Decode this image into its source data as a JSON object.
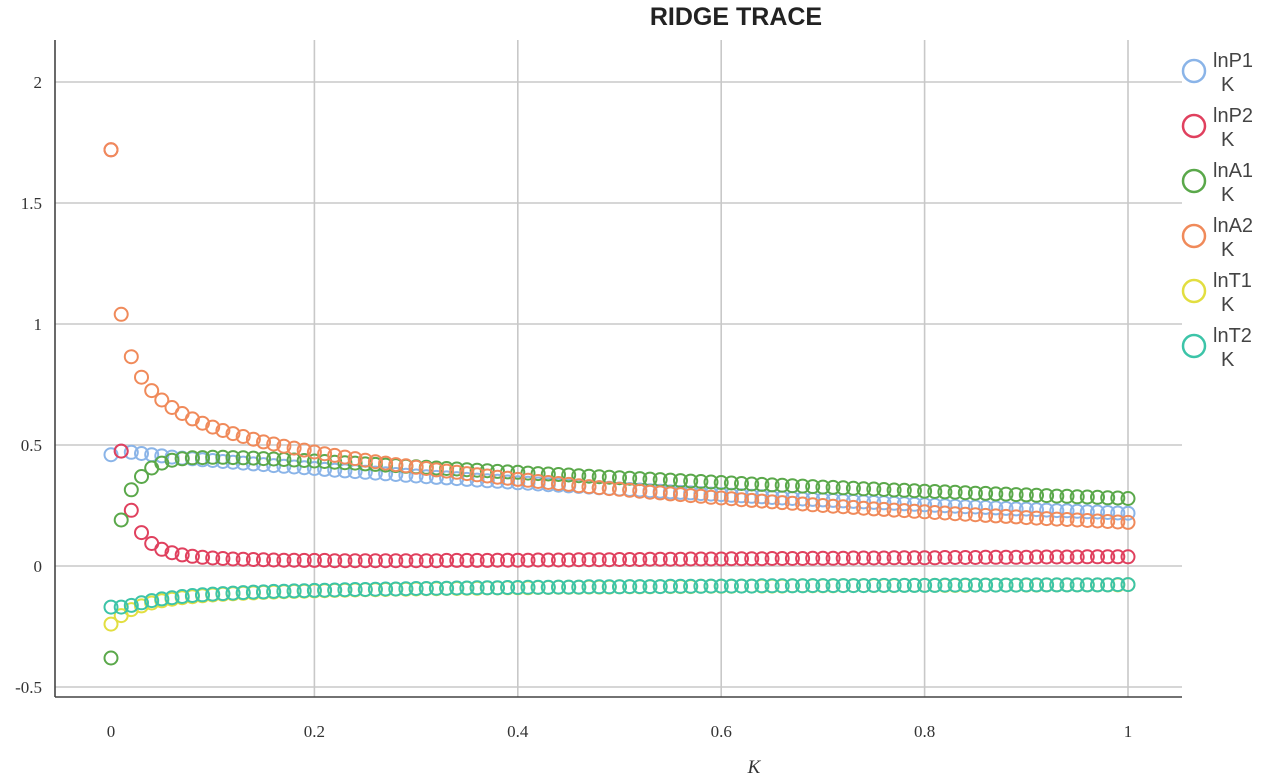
{
  "chart_data": {
    "type": "scatter",
    "title": "RIDGE TRACE",
    "xlabel": "K",
    "ylabel": "",
    "xlim": [
      0,
      1
    ],
    "ylim": [
      -0.5,
      2.2
    ],
    "xticks": [
      "0",
      "0.2",
      "0.4",
      "0.6",
      "0.8",
      "1"
    ],
    "yticks": [
      "-0.5",
      "0",
      "0.5",
      "1",
      "1.5",
      "2"
    ],
    "grid": true,
    "legend_position": "right",
    "x": [
      0.0,
      0.01,
      0.02,
      0.03,
      0.04,
      0.05,
      0.06,
      0.07,
      0.08,
      0.09,
      0.1,
      0.11,
      0.12,
      0.13,
      0.14,
      0.15,
      0.16,
      0.17,
      0.18,
      0.19,
      0.2,
      0.21,
      0.22,
      0.23,
      0.24,
      0.25,
      0.26,
      0.27,
      0.28,
      0.29,
      0.3,
      0.31,
      0.32,
      0.33,
      0.34,
      0.35,
      0.36,
      0.37,
      0.38,
      0.39,
      0.4,
      0.41,
      0.42,
      0.43,
      0.44,
      0.45,
      0.46,
      0.47,
      0.48,
      0.49,
      0.5,
      0.51,
      0.52,
      0.53,
      0.54,
      0.55,
      0.56,
      0.57,
      0.58,
      0.59,
      0.6,
      0.61,
      0.62,
      0.63,
      0.64,
      0.65,
      0.66,
      0.67,
      0.68,
      0.69,
      0.7,
      0.71,
      0.72,
      0.73,
      0.74,
      0.75,
      0.76,
      0.77,
      0.78,
      0.79,
      0.8,
      0.81,
      0.82,
      0.83,
      0.84,
      0.85,
      0.86,
      0.87,
      0.88,
      0.89,
      0.9,
      0.91,
      0.92,
      0.93,
      0.94,
      0.95,
      0.96,
      0.97,
      0.98,
      0.99,
      1.0
    ],
    "series": [
      {
        "name": "lnP1",
        "sub": "K",
        "color": "#8ab4e8",
        "values": [
          0.46,
          0.475,
          0.47,
          0.465,
          0.46,
          0.455,
          0.45,
          0.446,
          0.443,
          0.439,
          0.436,
          0.432,
          0.429,
          0.425,
          0.422,
          0.419,
          0.415,
          0.412,
          0.409,
          0.406,
          0.403,
          0.399,
          0.396,
          0.393,
          0.39,
          0.387,
          0.384,
          0.381,
          0.378,
          0.375,
          0.372,
          0.369,
          0.366,
          0.364,
          0.361,
          0.358,
          0.355,
          0.352,
          0.35,
          0.347,
          0.344,
          0.342,
          0.339,
          0.336,
          0.334,
          0.331,
          0.329,
          0.326,
          0.323,
          0.321,
          0.318,
          0.316,
          0.314,
          0.311,
          0.309,
          0.306,
          0.304,
          0.302,
          0.299,
          0.297,
          0.295,
          0.292,
          0.29,
          0.288,
          0.286,
          0.283,
          0.281,
          0.279,
          0.277,
          0.275,
          0.273,
          0.271,
          0.269,
          0.267,
          0.265,
          0.263,
          0.261,
          0.259,
          0.257,
          0.255,
          0.253,
          0.251,
          0.249,
          0.247,
          0.245,
          0.244,
          0.242,
          0.24,
          0.238,
          0.236,
          0.235,
          0.233,
          0.231,
          0.229,
          0.228,
          0.226,
          0.224,
          0.223,
          0.221,
          0.219,
          0.218
        ]
      },
      {
        "name": "lnP2",
        "sub": "K",
        "color": "#e0405e",
        "values": [
          1.72,
          0.475,
          0.23,
          0.138,
          0.093,
          0.069,
          0.055,
          0.046,
          0.04,
          0.036,
          0.033,
          0.031,
          0.029,
          0.028,
          0.027,
          0.026,
          0.025,
          0.024,
          0.024,
          0.023,
          0.023,
          0.023,
          0.022,
          0.022,
          0.022,
          0.022,
          0.022,
          0.022,
          0.022,
          0.022,
          0.022,
          0.022,
          0.022,
          0.023,
          0.023,
          0.023,
          0.023,
          0.023,
          0.024,
          0.024,
          0.024,
          0.024,
          0.025,
          0.025,
          0.025,
          0.025,
          0.026,
          0.026,
          0.026,
          0.026,
          0.027,
          0.027,
          0.027,
          0.028,
          0.028,
          0.028,
          0.028,
          0.029,
          0.029,
          0.029,
          0.029,
          0.03,
          0.03,
          0.03,
          0.03,
          0.031,
          0.031,
          0.031,
          0.031,
          0.032,
          0.032,
          0.032,
          0.032,
          0.033,
          0.033,
          0.033,
          0.033,
          0.034,
          0.034,
          0.034,
          0.034,
          0.034,
          0.035,
          0.035,
          0.035,
          0.035,
          0.036,
          0.036,
          0.036,
          0.036,
          0.036,
          0.037,
          0.037,
          0.037,
          0.037,
          0.037,
          0.038,
          0.038,
          0.038,
          0.038,
          0.038
        ]
      },
      {
        "name": "lnA1",
        "sub": "K",
        "color": "#5aa84a",
        "values": [
          -0.38,
          0.19,
          0.315,
          0.37,
          0.405,
          0.425,
          0.437,
          0.443,
          0.447,
          0.448,
          0.449,
          0.449,
          0.448,
          0.447,
          0.446,
          0.444,
          0.442,
          0.44,
          0.438,
          0.436,
          0.434,
          0.432,
          0.429,
          0.427,
          0.425,
          0.422,
          0.42,
          0.417,
          0.415,
          0.412,
          0.41,
          0.408,
          0.405,
          0.403,
          0.401,
          0.398,
          0.396,
          0.394,
          0.391,
          0.389,
          0.387,
          0.384,
          0.382,
          0.38,
          0.378,
          0.376,
          0.373,
          0.371,
          0.369,
          0.367,
          0.365,
          0.363,
          0.361,
          0.359,
          0.357,
          0.355,
          0.353,
          0.351,
          0.349,
          0.347,
          0.345,
          0.343,
          0.341,
          0.339,
          0.337,
          0.335,
          0.334,
          0.332,
          0.33,
          0.328,
          0.326,
          0.325,
          0.323,
          0.321,
          0.319,
          0.318,
          0.316,
          0.314,
          0.313,
          0.311,
          0.309,
          0.308,
          0.306,
          0.305,
          0.303,
          0.301,
          0.3,
          0.298,
          0.297,
          0.295,
          0.294,
          0.292,
          0.291,
          0.289,
          0.288,
          0.286,
          0.285,
          0.284,
          0.282,
          0.281,
          0.279
        ]
      },
      {
        "name": "lnA2",
        "sub": "K",
        "color": "#f08a5a",
        "values": [
          1.72,
          1.04,
          0.865,
          0.78,
          0.725,
          0.686,
          0.655,
          0.63,
          0.608,
          0.59,
          0.574,
          0.56,
          0.547,
          0.535,
          0.524,
          0.513,
          0.504,
          0.495,
          0.487,
          0.479,
          0.471,
          0.464,
          0.457,
          0.45,
          0.444,
          0.437,
          0.431,
          0.425,
          0.419,
          0.414,
          0.408,
          0.403,
          0.397,
          0.392,
          0.387,
          0.382,
          0.377,
          0.372,
          0.367,
          0.363,
          0.358,
          0.354,
          0.349,
          0.345,
          0.341,
          0.337,
          0.332,
          0.328,
          0.324,
          0.32,
          0.317,
          0.313,
          0.309,
          0.305,
          0.302,
          0.298,
          0.295,
          0.291,
          0.288,
          0.284,
          0.281,
          0.278,
          0.274,
          0.271,
          0.268,
          0.265,
          0.262,
          0.259,
          0.256,
          0.253,
          0.25,
          0.247,
          0.245,
          0.242,
          0.239,
          0.236,
          0.234,
          0.231,
          0.229,
          0.226,
          0.224,
          0.221,
          0.219,
          0.216,
          0.214,
          0.212,
          0.209,
          0.207,
          0.205,
          0.203,
          0.2,
          0.198,
          0.196,
          0.194,
          0.192,
          0.19,
          0.188,
          0.186,
          0.184,
          0.182,
          0.18
        ]
      },
      {
        "name": "lnT1",
        "sub": "K",
        "color": "#e2de40",
        "values": [
          -0.24,
          -0.205,
          -0.18,
          -0.165,
          -0.153,
          -0.144,
          -0.137,
          -0.131,
          -0.127,
          -0.123,
          -0.12,
          -0.117,
          -0.115,
          -0.113,
          -0.111,
          -0.109,
          -0.108,
          -0.106,
          -0.105,
          -0.104,
          -0.103,
          -0.102,
          -0.101,
          -0.1,
          -0.099,
          -0.098,
          -0.098,
          -0.097,
          -0.096,
          -0.096,
          -0.095,
          -0.094,
          -0.094,
          -0.093,
          -0.093,
          -0.092,
          -0.092,
          -0.091,
          -0.091,
          -0.09,
          -0.09,
          -0.09,
          -0.089,
          -0.089,
          -0.088,
          -0.088,
          -0.088,
          -0.087,
          -0.087,
          -0.087,
          -0.086,
          -0.086,
          -0.086,
          -0.086,
          -0.085,
          -0.085,
          -0.085,
          -0.085,
          -0.084,
          -0.084,
          -0.084,
          -0.084,
          -0.083,
          -0.083,
          -0.083,
          -0.083,
          -0.083,
          -0.082,
          -0.082,
          -0.082,
          -0.082,
          -0.082,
          -0.081,
          -0.081,
          -0.081,
          -0.081,
          -0.081,
          -0.081,
          -0.08,
          -0.08,
          -0.08,
          -0.08,
          -0.08,
          -0.08,
          -0.08,
          -0.079,
          -0.079,
          -0.079,
          -0.079,
          -0.079,
          -0.079,
          -0.079,
          -0.078,
          -0.078,
          -0.078,
          -0.078,
          -0.078,
          -0.078,
          -0.078,
          -0.078,
          -0.077
        ]
      },
      {
        "name": "lnT2",
        "sub": "K",
        "color": "#3cc4a8",
        "values": [
          -0.17,
          -0.17,
          -0.163,
          -0.152,
          -0.143,
          -0.136,
          -0.131,
          -0.126,
          -0.122,
          -0.119,
          -0.116,
          -0.114,
          -0.112,
          -0.11,
          -0.108,
          -0.107,
          -0.105,
          -0.104,
          -0.103,
          -0.102,
          -0.101,
          -0.1,
          -0.099,
          -0.098,
          -0.097,
          -0.097,
          -0.096,
          -0.095,
          -0.095,
          -0.094,
          -0.093,
          -0.093,
          -0.092,
          -0.092,
          -0.091,
          -0.091,
          -0.09,
          -0.09,
          -0.09,
          -0.089,
          -0.089,
          -0.088,
          -0.088,
          -0.088,
          -0.087,
          -0.087,
          -0.087,
          -0.086,
          -0.086,
          -0.086,
          -0.086,
          -0.085,
          -0.085,
          -0.085,
          -0.085,
          -0.084,
          -0.084,
          -0.084,
          -0.084,
          -0.083,
          -0.083,
          -0.083,
          -0.083,
          -0.083,
          -0.082,
          -0.082,
          -0.082,
          -0.082,
          -0.082,
          -0.081,
          -0.081,
          -0.081,
          -0.081,
          -0.081,
          -0.081,
          -0.08,
          -0.08,
          -0.08,
          -0.08,
          -0.08,
          -0.08,
          -0.08,
          -0.079,
          -0.079,
          -0.079,
          -0.079,
          -0.079,
          -0.079,
          -0.079,
          -0.079,
          -0.078,
          -0.078,
          -0.078,
          -0.078,
          -0.078,
          -0.078,
          -0.078,
          -0.078,
          -0.078,
          -0.077,
          -0.077
        ]
      }
    ]
  }
}
